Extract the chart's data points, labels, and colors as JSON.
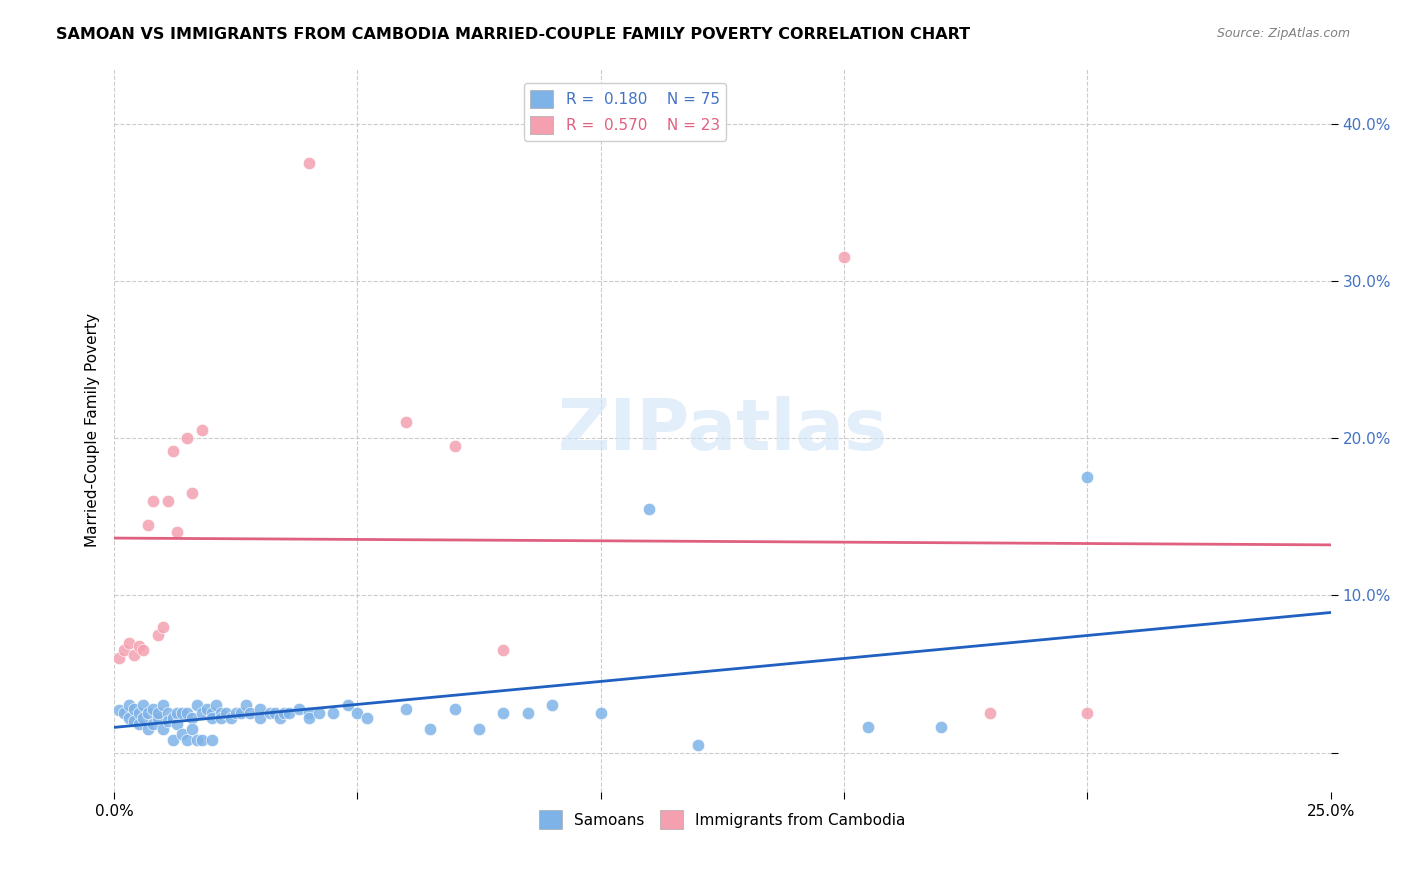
{
  "title": "SAMOAN VS IMMIGRANTS FROM CAMBODIA MARRIED-COUPLE FAMILY POVERTY CORRELATION CHART",
  "source": "Source: ZipAtlas.com",
  "ylabel": "Married-Couple Family Poverty",
  "x_min": 0.0,
  "x_max": 0.25,
  "R_blue": 0.18,
  "N_blue": 75,
  "R_pink": 0.57,
  "N_pink": 23,
  "color_blue": "#7EB3E8",
  "color_pink": "#F4A0B0",
  "color_line_blue": "#2060C0",
  "color_line_pink": "#E06080",
  "color_rval_blue": "#4472C4",
  "color_rval_pink": "#E06080",
  "watermark": "ZIPatlas",
  "blue_points": [
    [
      0.001,
      0.027
    ],
    [
      0.002,
      0.025
    ],
    [
      0.003,
      0.022
    ],
    [
      0.003,
      0.03
    ],
    [
      0.004,
      0.028
    ],
    [
      0.004,
      0.02
    ],
    [
      0.005,
      0.025
    ],
    [
      0.005,
      0.018
    ],
    [
      0.006,
      0.022
    ],
    [
      0.006,
      0.03
    ],
    [
      0.007,
      0.025
    ],
    [
      0.007,
      0.015
    ],
    [
      0.008,
      0.028
    ],
    [
      0.008,
      0.018
    ],
    [
      0.009,
      0.022
    ],
    [
      0.009,
      0.025
    ],
    [
      0.01,
      0.03
    ],
    [
      0.01,
      0.015
    ],
    [
      0.011,
      0.025
    ],
    [
      0.011,
      0.02
    ],
    [
      0.012,
      0.022
    ],
    [
      0.012,
      0.008
    ],
    [
      0.013,
      0.018
    ],
    [
      0.013,
      0.025
    ],
    [
      0.014,
      0.025
    ],
    [
      0.014,
      0.012
    ],
    [
      0.015,
      0.025
    ],
    [
      0.015,
      0.008
    ],
    [
      0.016,
      0.022
    ],
    [
      0.016,
      0.015
    ],
    [
      0.017,
      0.03
    ],
    [
      0.017,
      0.008
    ],
    [
      0.018,
      0.025
    ],
    [
      0.018,
      0.008
    ],
    [
      0.019,
      0.028
    ],
    [
      0.02,
      0.025
    ],
    [
      0.02,
      0.022
    ],
    [
      0.02,
      0.008
    ],
    [
      0.021,
      0.03
    ],
    [
      0.022,
      0.025
    ],
    [
      0.022,
      0.022
    ],
    [
      0.023,
      0.025
    ],
    [
      0.024,
      0.022
    ],
    [
      0.025,
      0.025
    ],
    [
      0.026,
      0.025
    ],
    [
      0.027,
      0.03
    ],
    [
      0.028,
      0.025
    ],
    [
      0.03,
      0.028
    ],
    [
      0.03,
      0.022
    ],
    [
      0.032,
      0.025
    ],
    [
      0.033,
      0.025
    ],
    [
      0.034,
      0.022
    ],
    [
      0.035,
      0.025
    ],
    [
      0.036,
      0.025
    ],
    [
      0.038,
      0.028
    ],
    [
      0.04,
      0.025
    ],
    [
      0.04,
      0.022
    ],
    [
      0.042,
      0.025
    ],
    [
      0.045,
      0.025
    ],
    [
      0.048,
      0.03
    ],
    [
      0.05,
      0.025
    ],
    [
      0.052,
      0.022
    ],
    [
      0.06,
      0.028
    ],
    [
      0.065,
      0.015
    ],
    [
      0.07,
      0.028
    ],
    [
      0.075,
      0.015
    ],
    [
      0.08,
      0.025
    ],
    [
      0.085,
      0.025
    ],
    [
      0.09,
      0.03
    ],
    [
      0.1,
      0.025
    ],
    [
      0.11,
      0.155
    ],
    [
      0.12,
      0.005
    ],
    [
      0.155,
      0.016
    ],
    [
      0.17,
      0.016
    ],
    [
      0.2,
      0.175
    ]
  ],
  "pink_points": [
    [
      0.001,
      0.06
    ],
    [
      0.002,
      0.065
    ],
    [
      0.003,
      0.07
    ],
    [
      0.004,
      0.062
    ],
    [
      0.005,
      0.068
    ],
    [
      0.006,
      0.065
    ],
    [
      0.007,
      0.145
    ],
    [
      0.008,
      0.16
    ],
    [
      0.009,
      0.075
    ],
    [
      0.01,
      0.08
    ],
    [
      0.011,
      0.16
    ],
    [
      0.012,
      0.192
    ],
    [
      0.013,
      0.14
    ],
    [
      0.015,
      0.2
    ],
    [
      0.016,
      0.165
    ],
    [
      0.018,
      0.205
    ],
    [
      0.04,
      0.375
    ],
    [
      0.06,
      0.21
    ],
    [
      0.07,
      0.195
    ],
    [
      0.08,
      0.065
    ],
    [
      0.15,
      0.315
    ],
    [
      0.18,
      0.025
    ],
    [
      0.2,
      0.025
    ]
  ]
}
